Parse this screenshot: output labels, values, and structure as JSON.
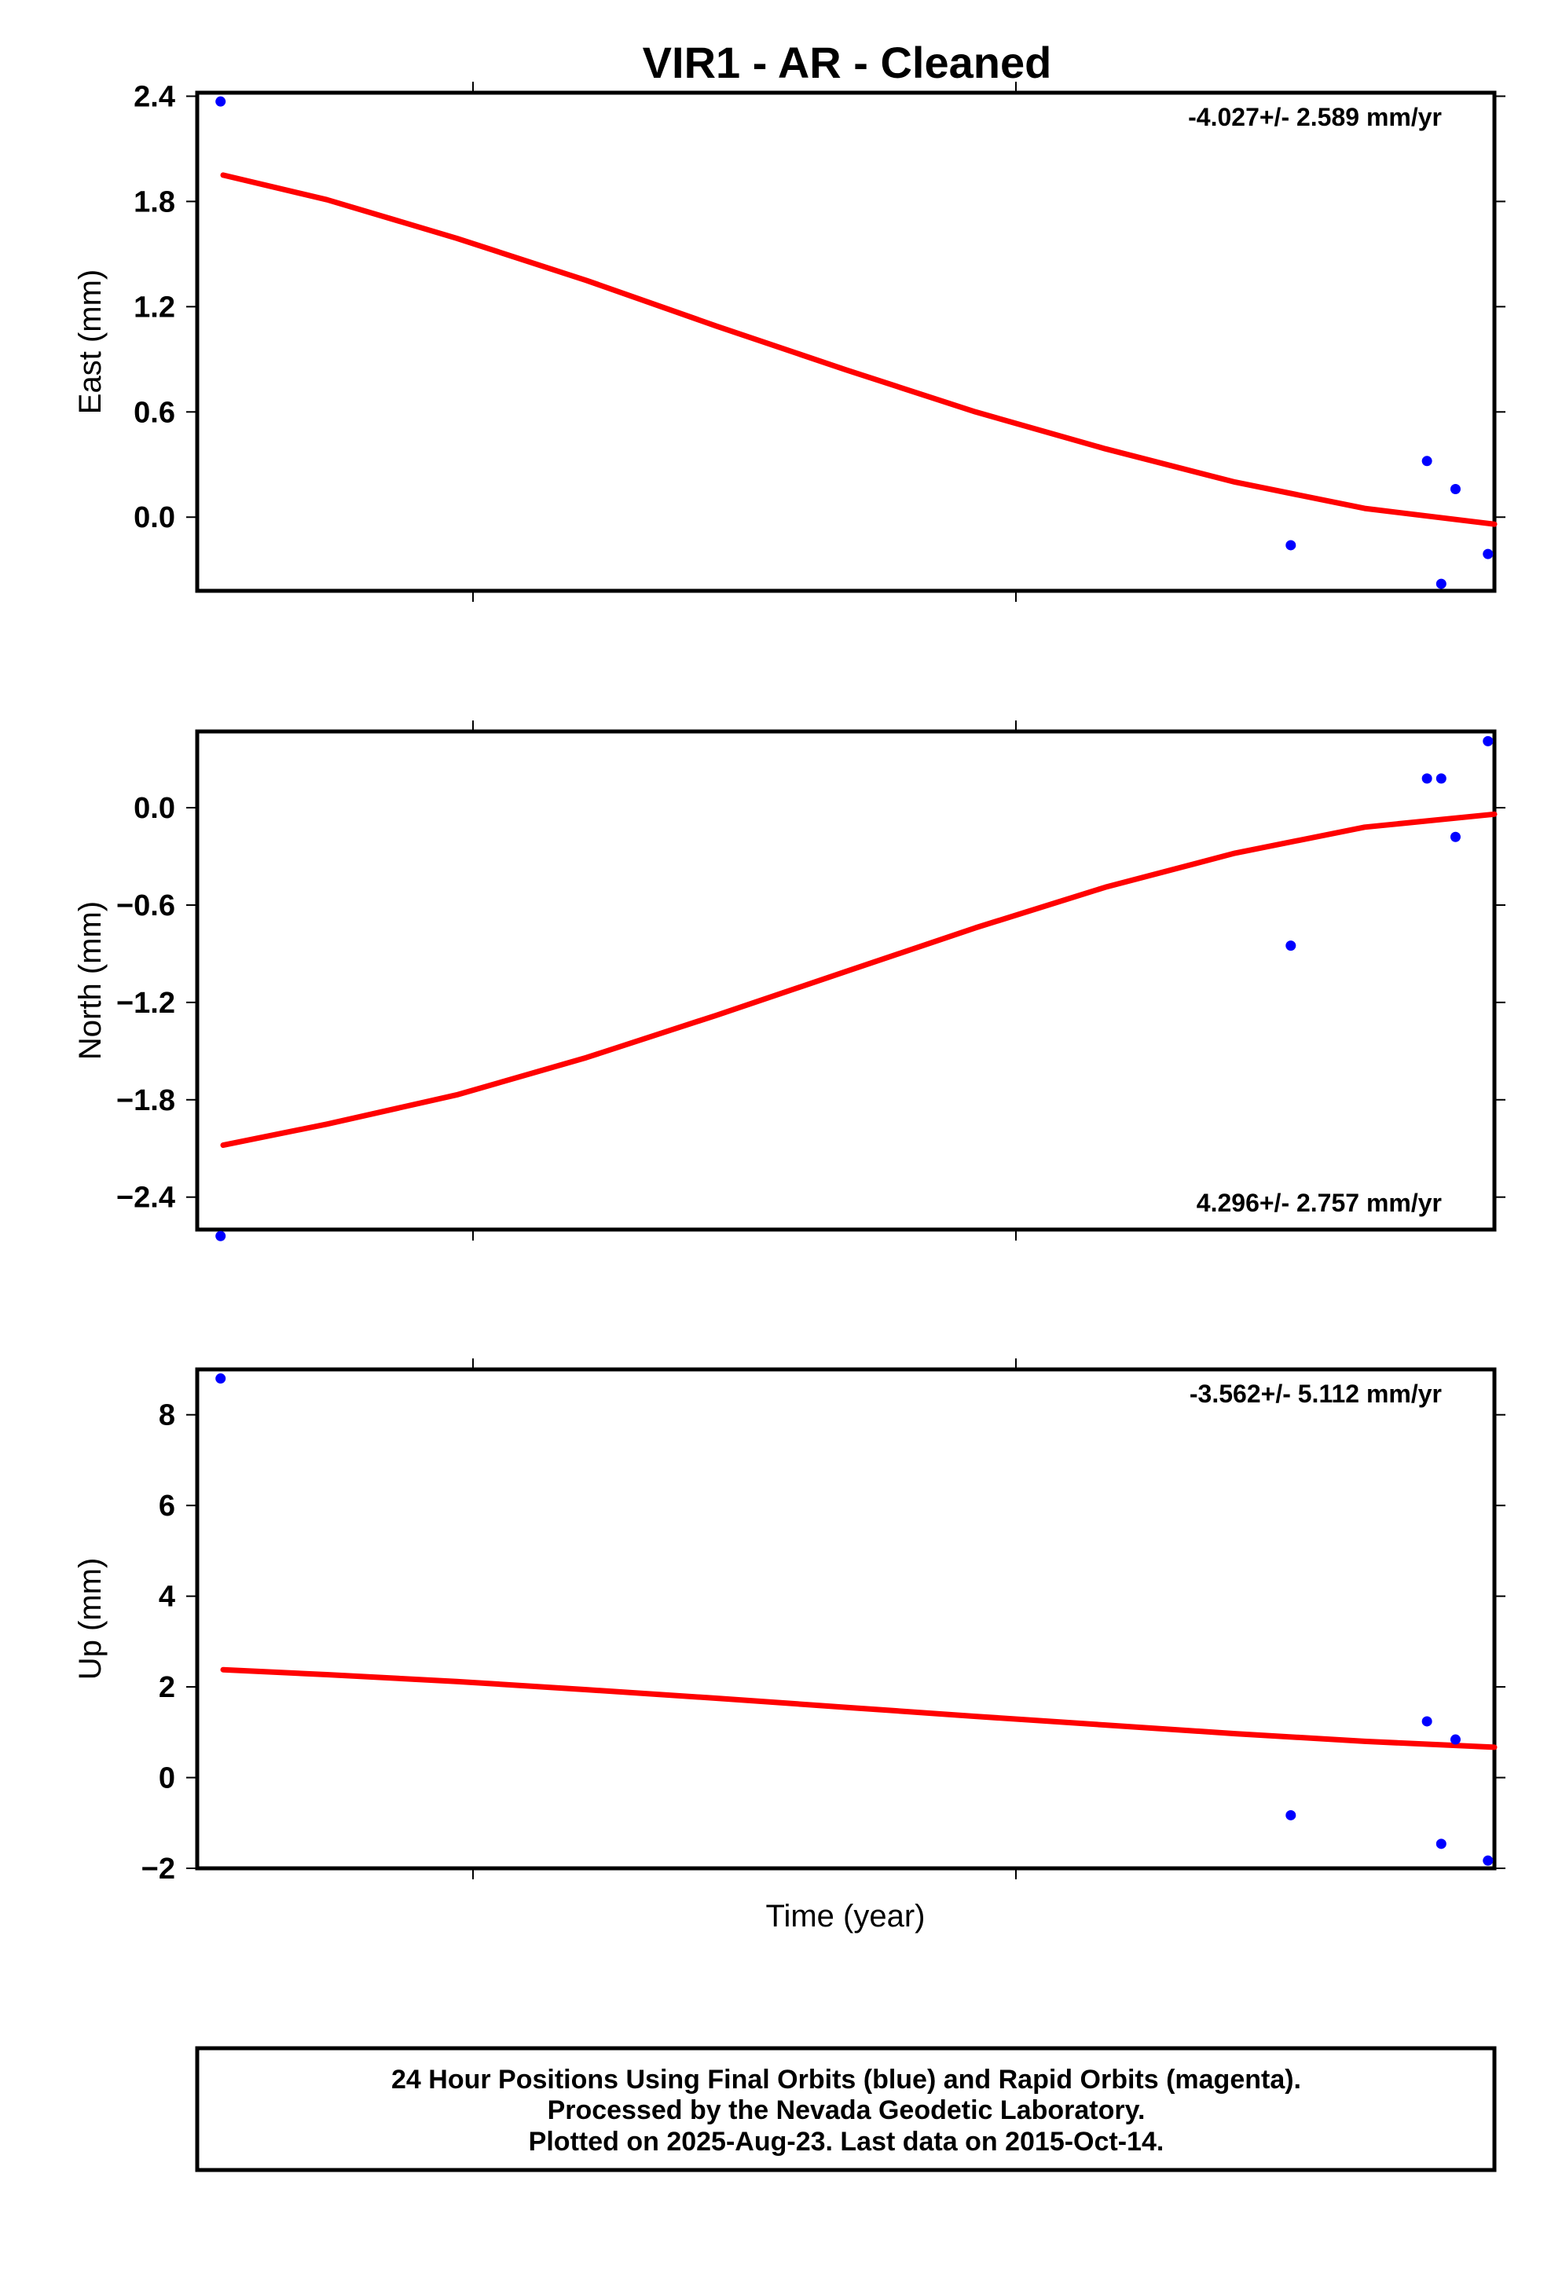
{
  "title": "VIR1  - AR - Cleaned",
  "x_label": "Time (year)",
  "footer": [
    "24 Hour Positions Using Final Orbits (blue) and Rapid Orbits (magenta).",
    "Processed by the Nevada Geodetic Laboratory.",
    "Plotted on 2025-Aug-23. Last data on 2015-Oct-14."
  ],
  "colors": {
    "points": "#0000ff",
    "fit": "#ff0000",
    "frame": "#000000"
  },
  "chart_data": [
    {
      "type": "scatter",
      "name": "east",
      "ylabel": "East (mm)",
      "rate_text": "-4.027+/- 2.589 mm/yr",
      "rate_position": "top-right",
      "ylim": [
        -0.42,
        2.42
      ],
      "yticks": [
        "2.4",
        "1.8",
        "1.2",
        "0.6",
        "0.0"
      ],
      "ytick_values": [
        2.4,
        1.8,
        1.2,
        0.6,
        0.0
      ],
      "x": [
        0.018,
        0.843,
        0.948,
        0.959,
        0.97,
        0.995
      ],
      "y": [
        2.37,
        -0.16,
        0.32,
        -0.38,
        0.16,
        -0.21
      ],
      "fit": {
        "x": [
          0.02,
          0.1,
          0.2,
          0.3,
          0.4,
          0.5,
          0.6,
          0.7,
          0.8,
          0.9,
          1.0
        ],
        "y": [
          1.95,
          1.81,
          1.59,
          1.35,
          1.09,
          0.84,
          0.6,
          0.39,
          0.2,
          0.05,
          -0.04
        ]
      }
    },
    {
      "type": "scatter",
      "name": "north",
      "ylabel": "North (mm)",
      "rate_text": "4.296+/- 2.757 mm/yr",
      "rate_position": "bottom-right",
      "ylim": [
        -2.6,
        0.47
      ],
      "yticks": [
        "0.0",
        "−0.6",
        "−1.2",
        "−1.8",
        "−2.4"
      ],
      "ytick_values": [
        0.0,
        -0.6,
        -1.2,
        -1.8,
        -2.4
      ],
      "x": [
        0.018,
        0.843,
        0.948,
        0.959,
        0.97,
        0.995
      ],
      "y": [
        -2.64,
        -0.85,
        0.18,
        0.18,
        -0.18,
        0.41
      ],
      "fit": {
        "x": [
          0.02,
          0.1,
          0.2,
          0.3,
          0.4,
          0.5,
          0.6,
          0.7,
          0.8,
          0.9,
          1.0
        ],
        "y": [
          -2.08,
          -1.95,
          -1.77,
          -1.54,
          -1.28,
          -1.01,
          -0.74,
          -0.49,
          -0.28,
          -0.12,
          -0.04
        ]
      }
    },
    {
      "type": "scatter",
      "name": "up",
      "ylabel": "Up (mm)",
      "rate_text": "-3.562+/- 5.112 mm/yr",
      "rate_position": "top-right",
      "ylim": [
        -2.0,
        9.0
      ],
      "yticks": [
        "8",
        "6",
        "4",
        "2",
        "0",
        "−2"
      ],
      "ytick_values": [
        8,
        6,
        4,
        2,
        0,
        -2
      ],
      "x": [
        0.018,
        0.843,
        0.948,
        0.959,
        0.97,
        0.995
      ],
      "y": [
        8.8,
        -0.83,
        1.24,
        -1.46,
        0.84,
        -1.83
      ],
      "fit": {
        "x": [
          0.02,
          0.1,
          0.2,
          0.3,
          0.4,
          0.5,
          0.6,
          0.7,
          0.8,
          0.9,
          1.0
        ],
        "y": [
          2.38,
          2.27,
          2.12,
          1.94,
          1.75,
          1.55,
          1.35,
          1.16,
          0.97,
          0.8,
          0.67
        ]
      }
    }
  ]
}
